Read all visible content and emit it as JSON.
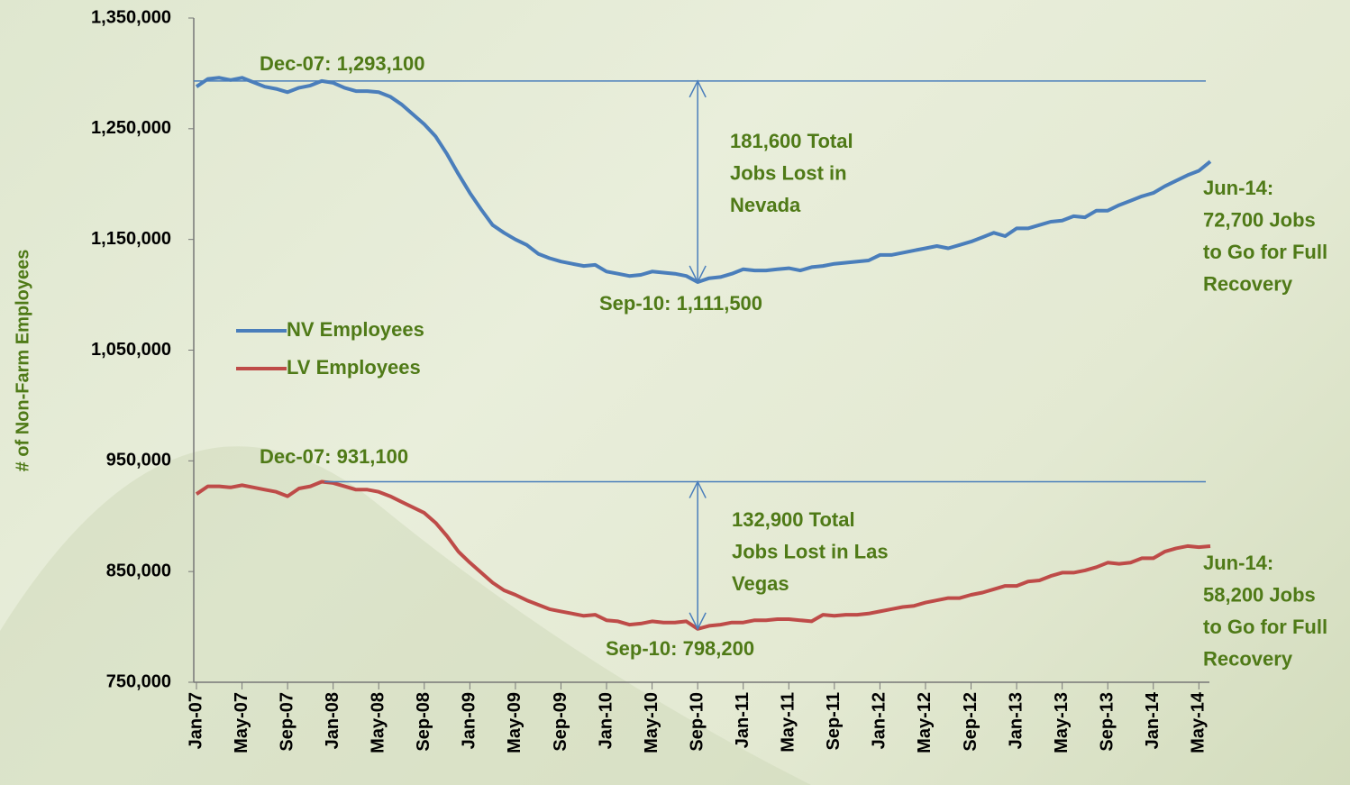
{
  "chart_data": {
    "type": "line",
    "y_label": "# of Non-Farm Employees",
    "categories": [
      "Jan-07",
      null,
      null,
      null,
      "May-07",
      null,
      null,
      null,
      "Sep-07",
      null,
      null,
      null,
      "Jan-08",
      null,
      null,
      null,
      "May-08",
      null,
      null,
      null,
      "Sep-08",
      null,
      null,
      null,
      "Jan-09",
      null,
      null,
      null,
      "May-09",
      null,
      null,
      null,
      "Sep-09",
      null,
      null,
      null,
      "Jan-10",
      null,
      null,
      null,
      "May-10",
      null,
      null,
      null,
      "Sep-10",
      null,
      null,
      null,
      "Jan-11",
      null,
      null,
      null,
      "May-11",
      null,
      null,
      null,
      "Sep-11",
      null,
      null,
      null,
      "Jan-12",
      null,
      null,
      null,
      "May-12",
      null,
      null,
      null,
      "Sep-12",
      null,
      null,
      null,
      "Jan-13",
      null,
      null,
      null,
      "May-13",
      null,
      null,
      null,
      "Sep-13",
      null,
      null,
      null,
      "Jan-14",
      null,
      null,
      null,
      "May-14",
      null
    ],
    "series": [
      {
        "name": "NV Employees",
        "color": "#4a7ebb",
        "values": [
          1288000,
          1295000,
          1296000,
          1294000,
          1296000,
          1292000,
          1288000,
          1286000,
          1283000,
          1287000,
          1289000,
          1293100,
          1291500,
          1287000,
          1284000,
          1284000,
          1283000,
          1279000,
          1272000,
          1263000,
          1254000,
          1243000,
          1227000,
          1209000,
          1192000,
          1177000,
          1163000,
          1156000,
          1150000,
          1145000,
          1137000,
          1133000,
          1130000,
          1128000,
          1126000,
          1127000,
          1121000,
          1119000,
          1117000,
          1118000,
          1121000,
          1120000,
          1119000,
          1117000,
          1111500,
          1115000,
          1116000,
          1119000,
          1123000,
          1122000,
          1122000,
          1123000,
          1124000,
          1122000,
          1125000,
          1126000,
          1128000,
          1129000,
          1130000,
          1131000,
          1136000,
          1136000,
          1138000,
          1140000,
          1142000,
          1144000,
          1142000,
          1145000,
          1148000,
          1152000,
          1156000,
          1153000,
          1160000,
          1160000,
          1163000,
          1166000,
          1167000,
          1171000,
          1170000,
          1176000,
          1176000,
          1181000,
          1185000,
          1189000,
          1192000,
          1198000,
          1203000,
          1208000,
          1212000,
          1220400
        ]
      },
      {
        "name": "LV Employees",
        "color": "#be4b48",
        "values": [
          920000,
          927000,
          927000,
          926000,
          928000,
          926000,
          924000,
          922000,
          918000,
          925000,
          927000,
          931100,
          930000,
          927000,
          924000,
          924000,
          922000,
          918000,
          913000,
          908000,
          903000,
          894000,
          882000,
          868000,
          858000,
          849000,
          840000,
          833000,
          829000,
          824000,
          820000,
          816000,
          814000,
          812000,
          810000,
          811000,
          806000,
          805000,
          802000,
          803000,
          805000,
          804000,
          804000,
          805000,
          798200,
          801000,
          802000,
          804000,
          804000,
          806000,
          806000,
          807000,
          807000,
          806000,
          805000,
          811000,
          810000,
          811000,
          811000,
          812000,
          814000,
          816000,
          818000,
          819000,
          822000,
          824000,
          826000,
          826000,
          829000,
          831000,
          834000,
          837000,
          837000,
          841000,
          842000,
          846000,
          849000,
          849000,
          851000,
          854000,
          858000,
          857000,
          858000,
          862000,
          862000,
          868000,
          871000,
          873000,
          872000,
          872900
        ]
      }
    ],
    "ylim": [
      750000,
      1350000
    ],
    "yticks": [
      {
        "value": 750000,
        "label": "750,000"
      },
      {
        "value": 850000,
        "label": "850,000"
      },
      {
        "value": 950000,
        "label": "950,000"
      },
      {
        "value": 1050000,
        "label": "1,050,000"
      },
      {
        "value": 1150000,
        "label": "1,150,000"
      },
      {
        "value": 1250000,
        "label": "1,250,000"
      },
      {
        "value": 1350000,
        "label": "1,350,000"
      }
    ],
    "legend": "middle-left",
    "annotations": [
      {
        "lines": [
          "Dec-07: 1,293,100"
        ]
      },
      {
        "lines": [
          "Sep-10: 1,111,500"
        ]
      },
      {
        "lines": [
          "181,600 Total",
          "Jobs Lost in",
          "Nevada"
        ]
      },
      {
        "lines": [
          "Jun-14:",
          "72,700 Jobs",
          "to Go for Full",
          "Recovery"
        ]
      },
      {
        "lines": [
          "Dec-07: 931,100"
        ]
      },
      {
        "lines": [
          "Sep-10: 798,200"
        ]
      },
      {
        "lines": [
          "132,900 Total",
          "Jobs Lost in Las",
          "Vegas"
        ]
      },
      {
        "lines": [
          "Jun-14:",
          "58,200 Jobs",
          "to Go for Full",
          "Recovery"
        ]
      }
    ]
  }
}
